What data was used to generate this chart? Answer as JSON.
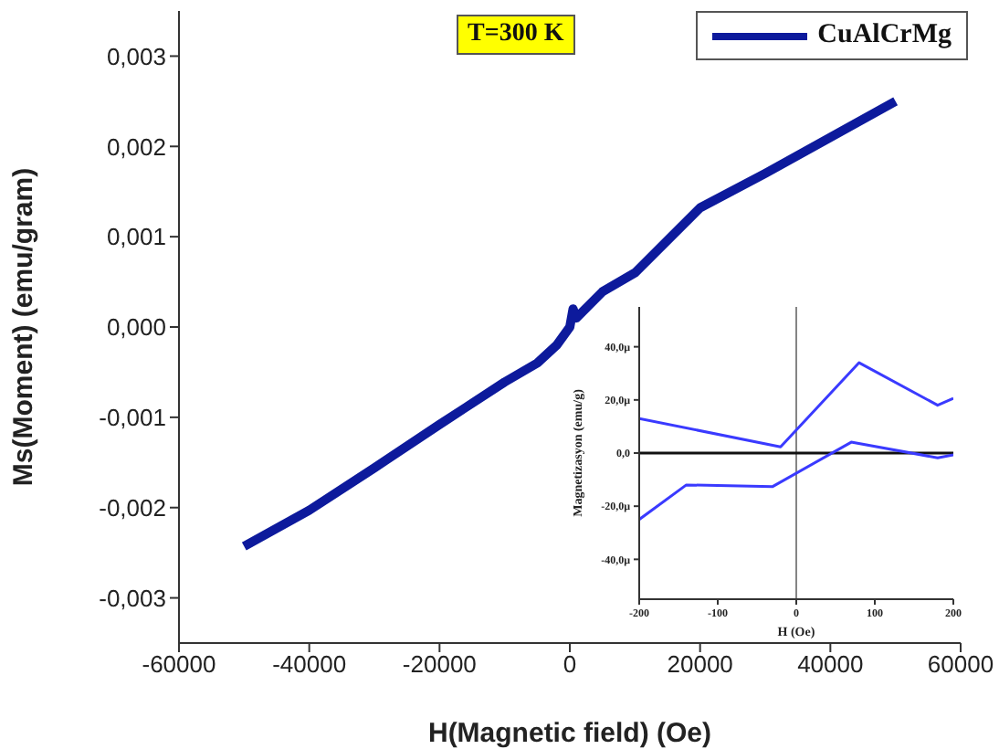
{
  "chart_data": [
    {
      "type": "line",
      "xlabel": "H(Magnetic field) (Oe)",
      "ylabel": "Ms(Moment) (emu/gram)",
      "annotations": [
        "T=300 K"
      ],
      "legend": "top right",
      "series": [
        {
          "name": "CuAlCrMg",
          "color": "#0d1a9c",
          "x": [
            -50000,
            -40000,
            -30000,
            -20000,
            -10000,
            -5000,
            -2000,
            0,
            500,
            1000,
            5000,
            10000,
            20000,
            30000,
            40000,
            50000
          ],
          "values": [
            -0.00243,
            -0.00203,
            -0.00156,
            -0.00108,
            -0.00061,
            -0.0004,
            -0.0002,
            0,
            0.0002,
            0.0001,
            0.00039,
            0.0006,
            0.00132,
            0.0017,
            0.0021,
            0.0025
          ]
        }
      ],
      "xlim": [
        -60000,
        60000
      ],
      "xticks": [
        -60000,
        -40000,
        -20000,
        0,
        20000,
        40000,
        60000
      ],
      "ylim": [
        -0.0035,
        0.0035
      ],
      "yticks": [
        {
          "value": -0.003,
          "label": "-0,003"
        },
        {
          "value": -0.002,
          "label": "-0,002"
        },
        {
          "value": -0.001,
          "label": "-0,001"
        },
        {
          "value": 0,
          "label": "0,000"
        },
        {
          "value": 0.001,
          "label": "0,001"
        },
        {
          "value": 0.002,
          "label": "0,002"
        },
        {
          "value": 0.003,
          "label": "0,003"
        }
      ]
    },
    {
      "type": "line",
      "xlabel": "H (Oe)",
      "ylabel": "Magnetizasyon (emu/g)",
      "series": [
        {
          "color": "#3a3aff",
          "x": [
            -200,
            -20,
            80,
            180,
            200
          ],
          "values": [
            13,
            2.3,
            34,
            18,
            20.6
          ]
        },
        {
          "color": "#3a3aff",
          "x": [
            -200,
            -140,
            -30,
            70,
            180,
            200
          ],
          "values": [
            -25,
            -12,
            -12.6,
            4.1,
            -1.8,
            -0.7
          ]
        }
      ],
      "ref_lines": [
        {
          "axis": "x",
          "value": 0
        },
        {
          "axis": "y",
          "value": 0
        }
      ],
      "xlim": [
        -200,
        200
      ],
      "xticks": [
        -200,
        -100,
        0,
        100,
        200
      ],
      "ylim": [
        -55,
        55
      ],
      "yticks": [
        {
          "value": -40,
          "label": "-40,0μ"
        },
        {
          "value": -20,
          "label": "-20,0μ"
        },
        {
          "value": 0,
          "label": "0,0"
        },
        {
          "value": 20,
          "label": "20,0μ"
        },
        {
          "value": 40,
          "label": "40,0μ"
        }
      ]
    }
  ]
}
